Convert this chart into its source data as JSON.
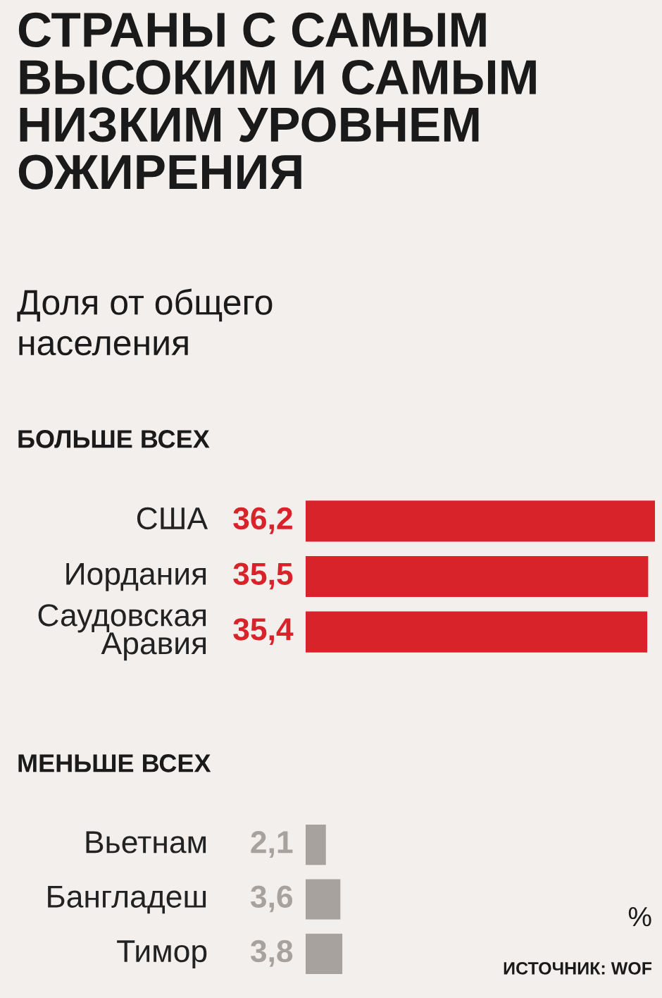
{
  "chart_data": [
    {
      "type": "bar",
      "orientation": "horizontal",
      "title": "СТРАНЫ С САМЫМ\nВЫСОКИМ И САМЫМ\nНИЗКИМ УРОВНЕМ\nОЖИРЕНИЯ",
      "subtitle": "Доля от общего\nнаселения",
      "annotations": [
        "БОЛЬШЕ ВСЕХ"
      ],
      "categories": [
        "США",
        "Иордания",
        "Саудовская\nАравия"
      ],
      "values": [
        36.2,
        35.5,
        35.4
      ],
      "value_labels": [
        "36,2",
        "35,5",
        "35,4"
      ],
      "color": "#d9232a"
    },
    {
      "type": "bar",
      "orientation": "horizontal",
      "title": "МЕНЬШЕ ВСЕХ",
      "annotations": [
        "%",
        "ИСТОЧНИК: WOF"
      ],
      "categories": [
        "Вьетнам",
        "Бангладеш",
        "Тимор"
      ],
      "values": [
        2.1,
        3.6,
        3.8
      ],
      "value_labels": [
        "2,1",
        "3,6",
        "3,8"
      ],
      "color": "#a8a29e"
    }
  ]
}
